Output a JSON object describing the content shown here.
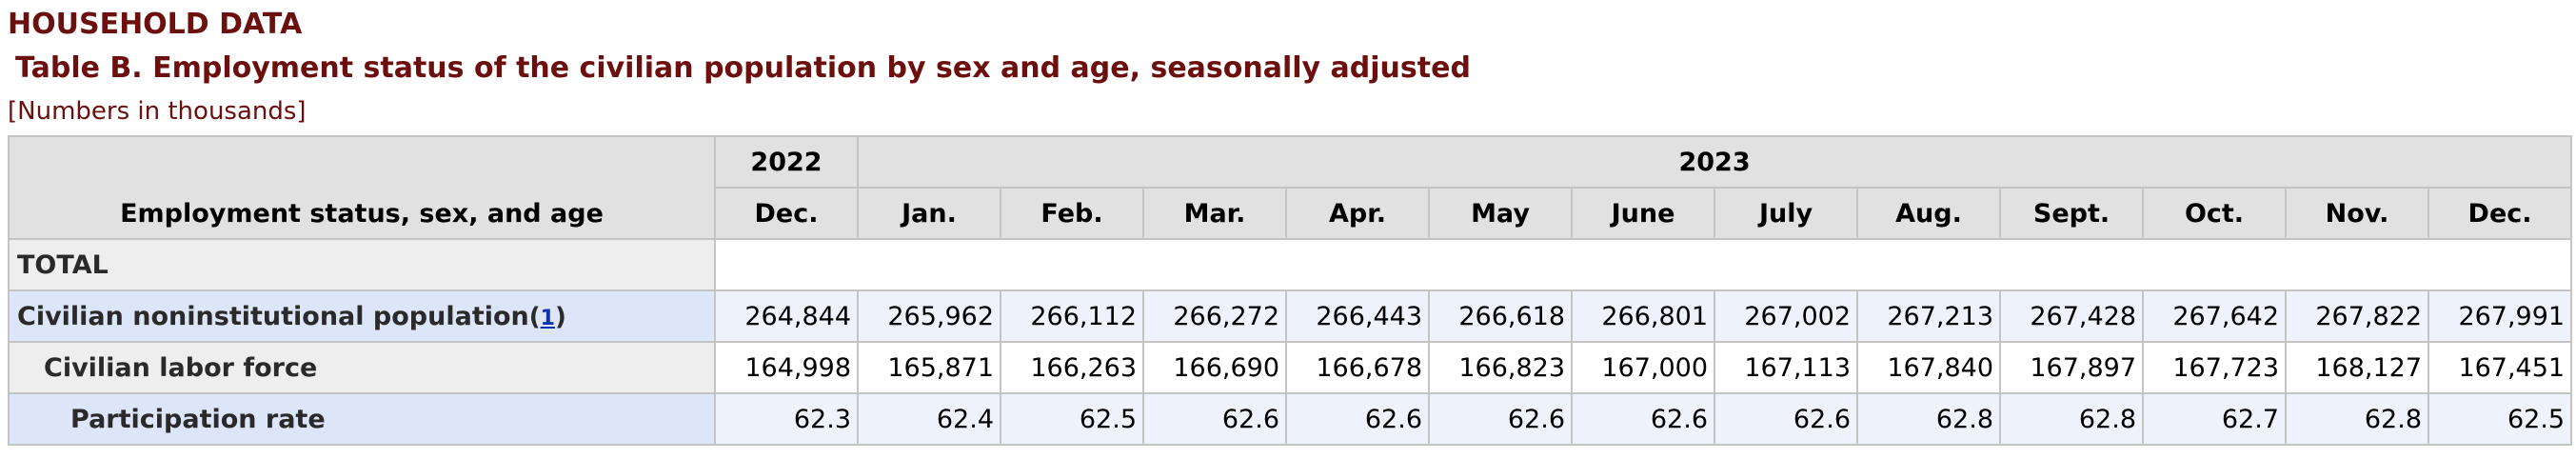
{
  "section_title": "HOUSEHOLD DATA",
  "table_title": "Table B.  Employment status of the civilian population by sex and age, seasonally adjusted",
  "table_note": "[Numbers in thousands]",
  "header": {
    "stub_label": "Employment status, sex, and age",
    "year_groups": [
      "2022",
      "2023"
    ],
    "months": [
      "Dec.",
      "Jan.",
      "Feb.",
      "Mar.",
      "Apr.",
      "May",
      "June",
      "July",
      "Aug.",
      "Sept.",
      "Oct.",
      "Nov.",
      "Dec."
    ]
  },
  "rows": [
    {
      "label": "TOTAL",
      "values": []
    },
    {
      "label": "Civilian noninstitutional population",
      "footnote": "1",
      "values": [
        "264,844",
        "265,962",
        "266,112",
        "266,272",
        "266,443",
        "266,618",
        "266,801",
        "267,002",
        "267,213",
        "267,428",
        "267,642",
        "267,822",
        "267,991"
      ]
    },
    {
      "label": "Civilian labor force",
      "values": [
        "164,998",
        "165,871",
        "166,263",
        "166,690",
        "166,678",
        "166,823",
        "167,000",
        "167,113",
        "167,840",
        "167,897",
        "167,723",
        "168,127",
        "167,451"
      ]
    },
    {
      "label": "Participation rate",
      "values": [
        "62.3",
        "62.4",
        "62.5",
        "62.6",
        "62.6",
        "62.6",
        "62.6",
        "62.6",
        "62.8",
        "62.8",
        "62.7",
        "62.8",
        "62.5"
      ]
    }
  ]
}
